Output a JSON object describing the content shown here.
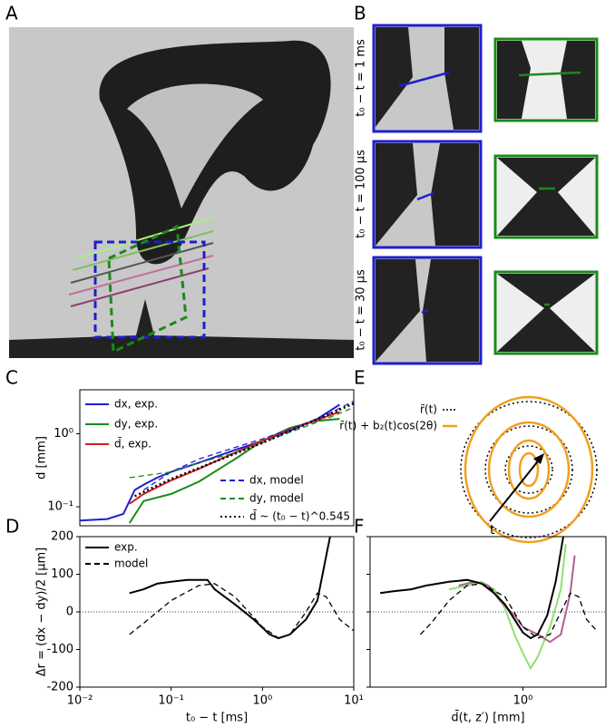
{
  "panels": {
    "a": "A",
    "b": "B",
    "c": "C",
    "d": "D",
    "e": "E",
    "f": "F"
  },
  "b_labels": [
    "t₀ − t = 1 ms",
    "t₀ − t = 100 μs",
    "t₀ − t = 30 μs"
  ],
  "e_legend": [
    "r̄(t)",
    "r̄(t) + b₂(t)cos(2θ)"
  ],
  "e_arrow_label": "t",
  "chart_data": [
    {
      "type": "line",
      "ylabel": "d [mm]",
      "xscale": "log",
      "yscale": "log",
      "xlim": [
        0.01,
        10
      ],
      "ylim": [
        0.055,
        4
      ],
      "yticks": [
        {
          "value": 0.1,
          "label": "10⁻¹"
        },
        {
          "value": 1,
          "label": "10⁰"
        }
      ],
      "series": [
        {
          "name": "dx, exp.",
          "color": "#1f1fd0",
          "style": "solid",
          "x": [
            0.01,
            0.02,
            0.03,
            0.04,
            0.05,
            0.07,
            0.1,
            0.2,
            0.5,
            1,
            2,
            4,
            7
          ],
          "values": [
            0.065,
            0.068,
            0.08,
            0.17,
            0.2,
            0.25,
            0.3,
            0.4,
            0.6,
            0.8,
            1.1,
            1.6,
            2.5
          ]
        },
        {
          "name": "dy, exp.",
          "color": "#1a8a1a",
          "style": "solid",
          "x": [
            0.035,
            0.05,
            0.1,
            0.2,
            0.5,
            1,
            2,
            4,
            7
          ],
          "values": [
            0.06,
            0.12,
            0.15,
            0.22,
            0.45,
            0.8,
            1.2,
            1.5,
            1.6
          ]
        },
        {
          "name": "d̄, exp.",
          "color": "#d01f1f",
          "style": "solid",
          "x": [
            0.035,
            0.05,
            0.1,
            0.2,
            0.5,
            1,
            2,
            4,
            7
          ],
          "values": [
            0.11,
            0.15,
            0.23,
            0.33,
            0.55,
            0.8,
            1.15,
            1.55,
            2.0
          ]
        },
        {
          "name": "dx, model",
          "color": "#1f1fd0",
          "style": "dashed",
          "x": [
            0.05,
            0.1,
            0.2,
            0.5,
            1,
            2,
            5,
            10
          ],
          "values": [
            0.17,
            0.3,
            0.45,
            0.65,
            0.85,
            1.15,
            1.8,
            2.8
          ]
        },
        {
          "name": "dy, model",
          "color": "#1a8a1a",
          "style": "dashed",
          "x": [
            0.035,
            0.1,
            0.2,
            0.5,
            1,
            2,
            5,
            10
          ],
          "values": [
            0.25,
            0.3,
            0.4,
            0.55,
            0.75,
            1.05,
            1.6,
            2.3
          ]
        },
        {
          "name": "d̄ ~ (t₀ − t)^0.545",
          "color": "#000000",
          "style": "dotted",
          "x": [
            0.04,
            0.1,
            1,
            10
          ],
          "values": [
            0.14,
            0.24,
            0.75,
            2.6
          ]
        }
      ]
    },
    {
      "type": "line",
      "xlabel": "t₀ − t [ms]",
      "ylabel": "Δr = (dx − dy)/2 [μm]",
      "xscale": "log",
      "xlim": [
        0.01,
        10
      ],
      "ylim": [
        -200,
        200
      ],
      "xticks": [
        {
          "value": 0.01,
          "label": "10⁻²"
        },
        {
          "value": 0.1,
          "label": "10⁻¹"
        },
        {
          "value": 1,
          "label": "10⁰"
        },
        {
          "value": 10,
          "label": "10¹"
        }
      ],
      "yticks": [
        -200,
        -100,
        0,
        100,
        200
      ],
      "hline": 0,
      "series": [
        {
          "name": "exp.",
          "color": "#000000",
          "style": "solid",
          "x": [
            0.035,
            0.05,
            0.07,
            0.1,
            0.15,
            0.25,
            0.3,
            0.5,
            0.8,
            1.2,
            1.5,
            2,
            3,
            4,
            5,
            5.5
          ],
          "values": [
            50,
            60,
            75,
            80,
            85,
            85,
            60,
            20,
            -20,
            -60,
            -70,
            -60,
            -20,
            30,
            150,
            200
          ]
        },
        {
          "name": "model",
          "color": "#000000",
          "style": "dashed",
          "x": [
            0.035,
            0.05,
            0.1,
            0.2,
            0.3,
            0.5,
            1,
            1.5,
            2,
            3,
            4,
            5,
            7,
            10
          ],
          "values": [
            -60,
            -30,
            30,
            70,
            75,
            40,
            -40,
            -70,
            -60,
            0,
            50,
            40,
            -20,
            -50
          ]
        }
      ]
    },
    {
      "type": "line",
      "xlabel": "d̄(t, z′) [mm]",
      "xscale": "log",
      "xlim": [
        0.15,
        2.8
      ],
      "ylim": [
        -200,
        200
      ],
      "xticks": [
        {
          "value": 1,
          "label": "10⁰"
        }
      ],
      "yticks": [
        -200,
        -100,
        0,
        100,
        200
      ],
      "hline": 0,
      "series": [
        {
          "color": "#90e070",
          "style": "solid",
          "x": [
            0.4,
            0.5,
            0.6,
            0.7,
            0.8,
            0.9,
            1.0,
            1.1,
            1.2,
            1.4,
            1.6,
            1.7
          ],
          "values": [
            60,
            70,
            80,
            60,
            10,
            -60,
            -110,
            -150,
            -120,
            -40,
            60,
            180
          ]
        },
        {
          "color": "#b06090",
          "style": "solid",
          "x": [
            0.45,
            0.55,
            0.65,
            0.75,
            0.9,
            1.0,
            1.2,
            1.4,
            1.6,
            1.8,
            1.9
          ],
          "values": [
            70,
            80,
            70,
            30,
            -10,
            -40,
            -60,
            -80,
            -60,
            50,
            150
          ]
        },
        {
          "color": "#000000",
          "style": "solid",
          "x": [
            0.17,
            0.2,
            0.25,
            0.3,
            0.4,
            0.5,
            0.6,
            0.7,
            0.8,
            0.9,
            1.0,
            1.1,
            1.2,
            1.35,
            1.5,
            1.65
          ],
          "values": [
            50,
            55,
            60,
            70,
            80,
            85,
            75,
            50,
            20,
            -20,
            -55,
            -70,
            -60,
            -10,
            80,
            200
          ]
        },
        {
          "color": "#000000",
          "style": "dashed",
          "x": [
            0.28,
            0.32,
            0.4,
            0.5,
            0.6,
            0.8,
            1.0,
            1.2,
            1.4,
            1.6,
            1.8,
            2.0,
            2.2,
            2.5
          ],
          "values": [
            -60,
            -30,
            30,
            70,
            75,
            40,
            -40,
            -70,
            -60,
            0,
            50,
            40,
            -20,
            -50
          ]
        }
      ]
    }
  ]
}
